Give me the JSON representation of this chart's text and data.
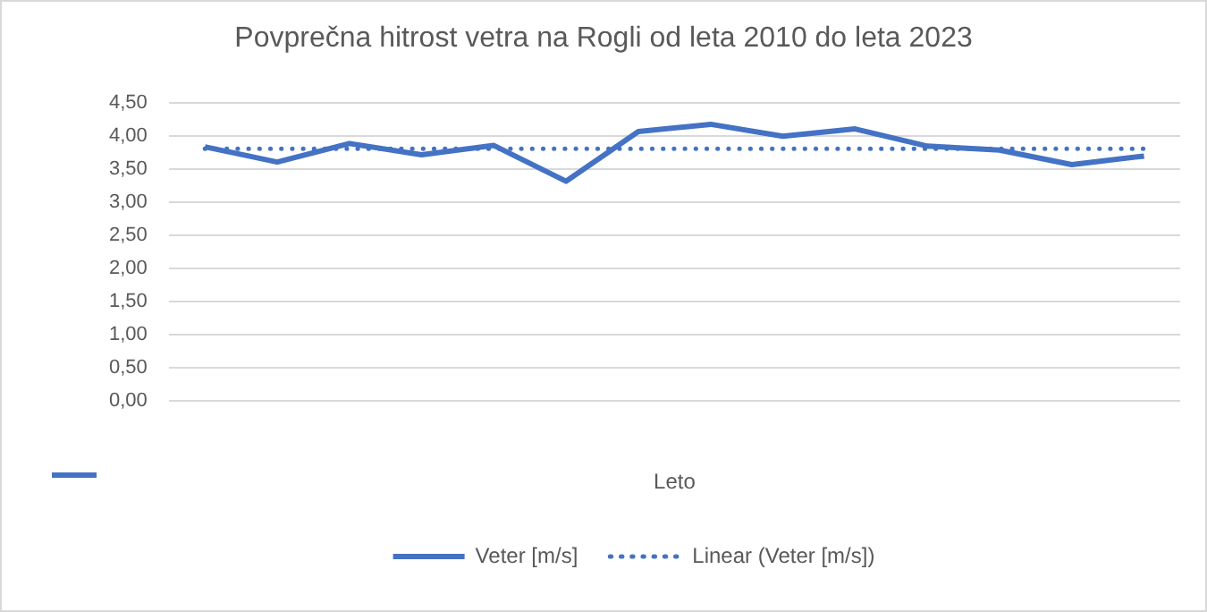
{
  "chart_data": {
    "type": "line",
    "title": "Povprečna hitrost vetra na Rogli od leta 2010 do leta 2023",
    "xlabel": "Leto",
    "categories": [
      null,
      null,
      null,
      null,
      null,
      null,
      null,
      null,
      null,
      null,
      null,
      null,
      null,
      null
    ],
    "series": [
      {
        "name": "Veter [m/s]",
        "color": "#4472c4",
        "line_style": "solid",
        "values": [
          3.84,
          3.61,
          3.89,
          3.72,
          3.86,
          3.32,
          4.07,
          4.18,
          4.0,
          4.11,
          3.85,
          3.79,
          3.57,
          3.7
        ]
      },
      {
        "name": "Linear (Veter [m/s])",
        "color": "#4472c4",
        "line_style": "dotted",
        "values": [
          3.81,
          3.81,
          3.81,
          3.81,
          3.81,
          3.81,
          3.81,
          3.81,
          3.81,
          3.81,
          3.81,
          3.81,
          3.81,
          3.81
        ]
      }
    ],
    "ylim": [
      0,
      4.5
    ],
    "yticks": [
      {
        "value": 0,
        "label": "0,00"
      },
      {
        "value": 0.5,
        "label": "0,50"
      },
      {
        "value": 1,
        "label": "1,00"
      },
      {
        "value": 1.5,
        "label": "1,50"
      },
      {
        "value": 2,
        "label": "2,00"
      },
      {
        "value": 2.5,
        "label": "2,50"
      },
      {
        "value": 3,
        "label": "3,00"
      },
      {
        "value": 3.5,
        "label": "3,50"
      },
      {
        "value": 4,
        "label": "4,00"
      },
      {
        "value": 4.5,
        "label": "4,50"
      }
    ],
    "grid": "y",
    "legend": "bottom",
    "marker": "none"
  }
}
